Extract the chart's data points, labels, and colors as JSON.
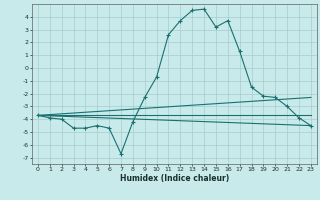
{
  "title": "",
  "xlabel": "Humidex (Indice chaleur)",
  "bg_color": "#c8eaea",
  "grid_color": "#a8cccc",
  "line_color": "#1a7070",
  "xlim": [
    -0.5,
    23.5
  ],
  "ylim": [
    -7.5,
    5.0
  ],
  "xticks": [
    0,
    1,
    2,
    3,
    4,
    5,
    6,
    7,
    8,
    9,
    10,
    11,
    12,
    13,
    14,
    15,
    16,
    17,
    18,
    19,
    20,
    21,
    22,
    23
  ],
  "yticks": [
    -7,
    -6,
    -5,
    -4,
    -3,
    -2,
    -1,
    0,
    1,
    2,
    3,
    4
  ],
  "line1_x": [
    0,
    1,
    2,
    3,
    4,
    5,
    6,
    7,
    8,
    9,
    10,
    11,
    12,
    13,
    14,
    15,
    16,
    17,
    18,
    19,
    20,
    21,
    22,
    23
  ],
  "line1_y": [
    -3.7,
    -3.9,
    -4.0,
    -4.7,
    -4.7,
    -4.5,
    -4.7,
    -6.7,
    -4.2,
    -2.3,
    -0.7,
    2.6,
    3.7,
    4.5,
    4.6,
    3.2,
    3.7,
    1.3,
    -1.5,
    -2.2,
    -2.3,
    -3.0,
    -3.9,
    -4.5
  ],
  "line2_x": [
    0,
    23
  ],
  "line2_y": [
    -3.7,
    -3.7
  ],
  "line3_x": [
    0,
    23
  ],
  "line3_y": [
    -3.7,
    -2.3
  ],
  "line4_x": [
    0,
    23
  ],
  "line4_y": [
    -3.7,
    -4.5
  ]
}
